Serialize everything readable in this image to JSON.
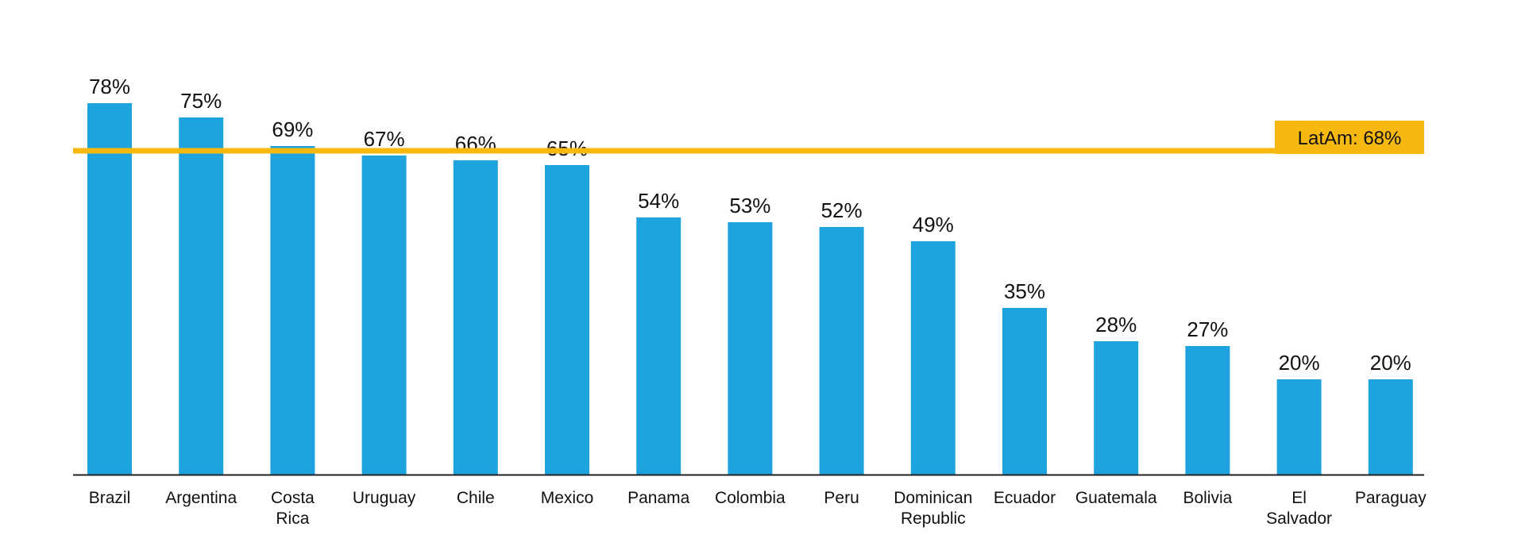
{
  "chart_data": {
    "type": "bar",
    "categories": [
      "Brazil",
      "Argentina",
      "Costa Rica",
      "Uruguay",
      "Chile",
      "Mexico",
      "Panama",
      "Colombia",
      "Peru",
      "Dominican Republic",
      "Ecuador",
      "Guatemala",
      "Bolivia",
      "El Salvador",
      "Paraguay"
    ],
    "category_label_lines": [
      [
        "Brazil"
      ],
      [
        "Argentina"
      ],
      [
        "Costa",
        "Rica"
      ],
      [
        "Uruguay"
      ],
      [
        "Chile"
      ],
      [
        "Mexico"
      ],
      [
        "Panama"
      ],
      [
        "Colombia"
      ],
      [
        "Peru"
      ],
      [
        "Dominican",
        "Republic"
      ],
      [
        "Ecuador"
      ],
      [
        "Guatemala"
      ],
      [
        "Bolivia"
      ],
      [
        "El",
        "Salvador"
      ],
      [
        "Paraguay"
      ]
    ],
    "values": [
      78,
      75,
      69,
      67,
      66,
      65,
      54,
      53,
      52,
      49,
      35,
      28,
      27,
      20,
      20
    ],
    "value_labels": [
      "78%",
      "75%",
      "69%",
      "67%",
      "66%",
      "65%",
      "54%",
      "53%",
      "52%",
      "49%",
      "35%",
      "28%",
      "27%",
      "20%",
      "20%"
    ],
    "ylim": [
      0,
      100
    ],
    "grid": false,
    "reference_line": {
      "value": 68,
      "label": "LatAm: 68%"
    },
    "colors": {
      "bar": "#1fa3df",
      "reference": "#f7b90f",
      "axis": "#222222"
    }
  }
}
